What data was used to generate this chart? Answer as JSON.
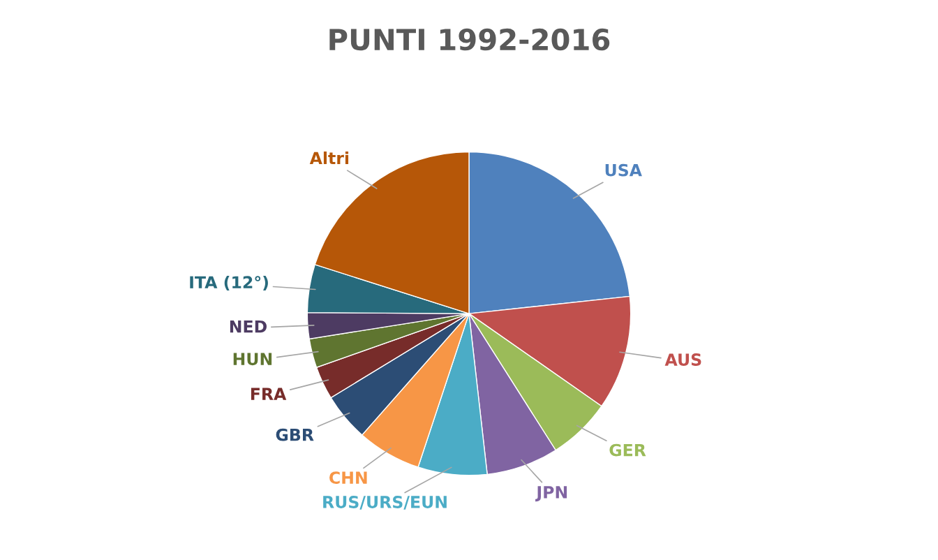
{
  "chart_data": {
    "type": "pie",
    "title": "PUNTI 1992-2016",
    "categories": [
      "USA",
      "AUS",
      "GER",
      "JPN",
      "RUS/URS/EUN",
      "CHN",
      "GBR",
      "FRA",
      "HUN",
      "NED",
      "ITA (12°)",
      "Altri"
    ],
    "values": [
      23.3,
      11.4,
      6.3,
      7.2,
      6.9,
      6.4,
      4.8,
      3.3,
      2.9,
      2.6,
      4.8,
      20.1
    ],
    "colors": [
      "#4f81bd",
      "#c0504d",
      "#9bbb59",
      "#8064a2",
      "#4bacc6",
      "#f79646",
      "#2c4d75",
      "#772c2a",
      "#5f7530",
      "#4d3b62",
      "#276a7c",
      "#b65708"
    ],
    "legend": false
  }
}
